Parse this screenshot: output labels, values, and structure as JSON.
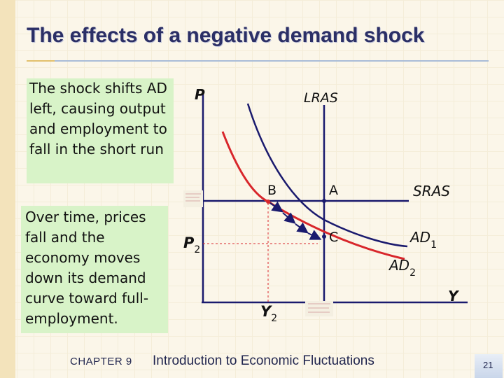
{
  "slide": {
    "title": "The effects of a negative demand shock",
    "page_number": "21"
  },
  "notes": {
    "short_run": "The shock shifts AD left, causing output and employment to fall in the short run",
    "long_run": "Over time, prices fall and the economy moves down its demand curve toward full-employment."
  },
  "diagram": {
    "y_axis_label": "P",
    "x_axis_label": "Y",
    "curves": {
      "lras": "LRAS",
      "sras": "SRAS",
      "ad1": "AD",
      "ad1_sub": "1",
      "ad2": "AD",
      "ad2_sub": "2"
    },
    "points": {
      "a": "A",
      "b": "B",
      "c": "C"
    },
    "p2": "P",
    "p2_sub": "2",
    "y2": "Y",
    "y2_sub": "2",
    "colors": {
      "ad1": "#1a1a6e",
      "ad2": "#d8262b",
      "axes": "#1a1a6e",
      "guides": "#d8262b",
      "sras": "#1a1a6e"
    }
  },
  "footer": {
    "chapter": "CHAPTER 9",
    "book_title": "Introduction to Economic Fluctuations"
  }
}
